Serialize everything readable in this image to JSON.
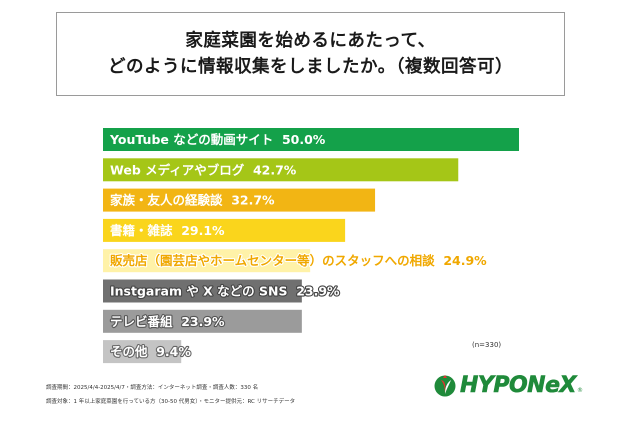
{
  "title": {
    "line1": "家庭菜園を始めるにあたって、",
    "line2": "どのように情報収集をしましたか。（複数回答可）"
  },
  "chart_data": {
    "type": "bar",
    "orientation": "horizontal",
    "unit": "%",
    "categories": [
      "YouTube などの動画サイト",
      "Web メディアやブログ",
      "家族・友人の経験談",
      "書籍・雑誌",
      "販売店（園芸店やホームセンター等）のスタッフへの相談",
      "Instgaram や X などの SNS",
      "テレビ番組",
      "その他"
    ],
    "values": [
      50.0,
      42.7,
      32.7,
      29.1,
      24.9,
      23.9,
      23.9,
      9.4
    ],
    "value_labels": [
      "50.0%",
      "42.7%",
      "32.7%",
      "29.1%",
      "24.9%",
      "23.9%",
      "23.9%",
      "9.4%"
    ],
    "colors": [
      "#14a14a",
      "#a5c617",
      "#f2b514",
      "#fad51c",
      "#fff2a8",
      "#707070",
      "#9b9b9b",
      "#c4c4c4"
    ],
    "xlim": [
      0,
      50
    ]
  },
  "sample_note": "(n=330)",
  "footnotes": {
    "line1": "調査期間：2025/4/4-2025/4/7・調査方法：インターネット調査・調査人数：330 名",
    "line2": "調査対象：1 年以上家庭菜園を行っている方（30-50 代男女）・モニター提供元：RC リサーチデータ"
  },
  "logo": {
    "text": "HYPONeX",
    "mark": "®",
    "colors": {
      "brand": "#1f8a3a",
      "accent": "#e53030"
    }
  }
}
